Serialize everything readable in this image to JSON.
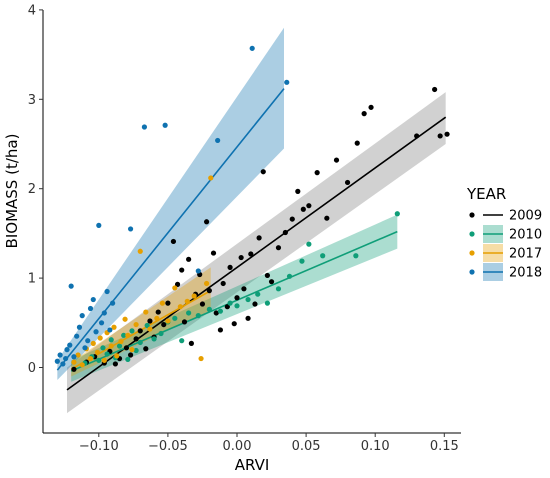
{
  "chart_data": {
    "type": "scatter",
    "xlabel": "ARVI",
    "ylabel": "BIOMASS (t/ha)",
    "xlim": [
      -0.145,
      0.16
    ],
    "ylim": [
      -0.72,
      4.0
    ],
    "x_ticks": [
      -0.1,
      -0.05,
      0.0,
      0.05,
      0.1,
      0.15
    ],
    "x_tick_labels": [
      "−0.10",
      "−0.05",
      "0.00",
      "0.05",
      "0.10",
      "0.15"
    ],
    "y_ticks": [
      0,
      1,
      2,
      3,
      4
    ],
    "y_tick_labels": [
      "0",
      "1",
      "2",
      "3",
      "4"
    ],
    "grid": false,
    "legend": {
      "title": "YEAR",
      "placement": "right"
    },
    "series": [
      {
        "name": "2009",
        "color": "#000000",
        "fit": {
          "x": [
            -0.123,
            0.151
          ],
          "y": [
            -0.25,
            2.8
          ],
          "ci_lower": [
            -0.51,
            2.5
          ],
          "ci_upper": [
            0.0,
            3.08
          ]
        },
        "points": [
          [
            -0.118,
            -0.02
          ],
          [
            -0.109,
            0.06
          ],
          [
            -0.103,
            0.12
          ],
          [
            -0.096,
            0.05
          ],
          [
            -0.092,
            0.18
          ],
          [
            -0.088,
            0.04
          ],
          [
            -0.085,
            0.1
          ],
          [
            -0.08,
            0.22
          ],
          [
            -0.077,
            0.14
          ],
          [
            -0.073,
            0.32
          ],
          [
            -0.07,
            0.41
          ],
          [
            -0.066,
            0.21
          ],
          [
            -0.063,
            0.52
          ],
          [
            -0.06,
            0.34
          ],
          [
            -0.057,
            0.62
          ],
          [
            -0.053,
            0.48
          ],
          [
            -0.05,
            0.72
          ],
          [
            -0.046,
            1.41
          ],
          [
            -0.043,
            0.93
          ],
          [
            -0.04,
            1.09
          ],
          [
            -0.038,
            0.51
          ],
          [
            -0.035,
            1.21
          ],
          [
            -0.033,
            0.27
          ],
          [
            -0.03,
            0.82
          ],
          [
            -0.027,
            1.04
          ],
          [
            -0.025,
            0.71
          ],
          [
            -0.022,
            1.63
          ],
          [
            -0.02,
            0.86
          ],
          [
            -0.017,
            1.28
          ],
          [
            -0.015,
            0.61
          ],
          [
            -0.012,
            0.42
          ],
          [
            -0.01,
            0.94
          ],
          [
            -0.007,
            0.68
          ],
          [
            -0.005,
            1.12
          ],
          [
            -0.002,
            0.49
          ],
          [
            0.0,
            0.78
          ],
          [
            0.003,
            1.23
          ],
          [
            0.005,
            0.88
          ],
          [
            0.008,
            0.55
          ],
          [
            0.01,
            1.27
          ],
          [
            0.013,
            0.71
          ],
          [
            0.016,
            1.45
          ],
          [
            0.019,
            2.19
          ],
          [
            0.022,
            1.03
          ],
          [
            0.025,
            0.96
          ],
          [
            0.03,
            1.34
          ],
          [
            0.035,
            1.51
          ],
          [
            0.04,
            1.66
          ],
          [
            0.044,
            1.97
          ],
          [
            0.048,
            1.77
          ],
          [
            0.052,
            1.81
          ],
          [
            0.058,
            2.18
          ],
          [
            0.065,
            1.67
          ],
          [
            0.072,
            2.32
          ],
          [
            0.08,
            2.07
          ],
          [
            0.087,
            2.51
          ],
          [
            0.092,
            2.84
          ],
          [
            0.097,
            2.91
          ],
          [
            0.13,
            2.59
          ],
          [
            0.143,
            3.11
          ],
          [
            0.147,
            2.59
          ],
          [
            0.152,
            2.61
          ]
        ]
      },
      {
        "name": "2010",
        "color": "#0f9e78",
        "fit": {
          "x": [
            -0.12,
            0.116
          ],
          "y": [
            -0.04,
            1.52
          ],
          "ci_lower": [
            -0.16,
            1.33
          ],
          "ci_upper": [
            0.08,
            1.71
          ]
        },
        "points": [
          [
            -0.11,
            0.05
          ],
          [
            -0.105,
            0.12
          ],
          [
            -0.1,
            0.08
          ],
          [
            -0.097,
            0.22
          ],
          [
            -0.094,
            0.15
          ],
          [
            -0.091,
            0.31
          ],
          [
            -0.088,
            0.11
          ],
          [
            -0.085,
            0.24
          ],
          [
            -0.082,
            0.36
          ],
          [
            -0.079,
            0.09
          ],
          [
            -0.076,
            0.41
          ],
          [
            -0.073,
            0.19
          ],
          [
            -0.07,
            0.28
          ],
          [
            -0.065,
            0.47
          ],
          [
            -0.06,
            0.32
          ],
          [
            -0.055,
            0.38
          ],
          [
            -0.05,
            0.51
          ],
          [
            -0.045,
            0.55
          ],
          [
            -0.04,
            0.3
          ],
          [
            -0.035,
            0.61
          ],
          [
            -0.028,
            0.58
          ],
          [
            -0.02,
            0.65
          ],
          [
            -0.012,
            0.63
          ],
          [
            -0.005,
            0.72
          ],
          [
            0.0,
            0.69
          ],
          [
            0.008,
            0.76
          ],
          [
            0.015,
            0.82
          ],
          [
            0.022,
            0.72
          ],
          [
            0.03,
            0.88
          ],
          [
            0.038,
            1.02
          ],
          [
            0.047,
            1.19
          ],
          [
            0.052,
            1.38
          ],
          [
            0.062,
            1.25
          ],
          [
            0.086,
            1.25
          ],
          [
            0.116,
            1.72
          ]
        ]
      },
      {
        "name": "2017",
        "color": "#e69f00",
        "fit": {
          "x": [
            -0.12,
            -0.019
          ],
          "y": [
            -0.02,
            0.86
          ],
          "ci_lower": [
            -0.1,
            0.64
          ],
          "ci_upper": [
            0.06,
            1.12
          ]
        },
        "points": [
          [
            -0.118,
            0.06
          ],
          [
            -0.115,
            0.14
          ],
          [
            -0.112,
            0.03
          ],
          [
            -0.109,
            0.21
          ],
          [
            -0.106,
            0.1
          ],
          [
            -0.104,
            0.27
          ],
          [
            -0.101,
            0.17
          ],
          [
            -0.099,
            0.33
          ],
          [
            -0.096,
            0.08
          ],
          [
            -0.094,
            0.39
          ],
          [
            -0.091,
            0.24
          ],
          [
            -0.089,
            0.45
          ],
          [
            -0.087,
            0.13
          ],
          [
            -0.084,
            0.29
          ],
          [
            -0.081,
            0.54
          ],
          [
            -0.079,
            0.36
          ],
          [
            -0.076,
            0.2
          ],
          [
            -0.073,
            0.48
          ],
          [
            -0.07,
            1.3
          ],
          [
            -0.066,
            0.62
          ],
          [
            -0.063,
            0.43
          ],
          [
            -0.058,
            0.55
          ],
          [
            -0.054,
            0.72
          ],
          [
            -0.05,
            0.52
          ],
          [
            -0.045,
            0.89
          ],
          [
            -0.041,
            0.68
          ],
          [
            -0.036,
            0.74
          ],
          [
            -0.031,
            0.8
          ],
          [
            -0.026,
            0.1
          ],
          [
            -0.022,
            0.94
          ],
          [
            -0.019,
            2.12
          ]
        ]
      },
      {
        "name": "2018",
        "color": "#0f72b0",
        "fit": {
          "x": [
            -0.13,
            0.034
          ],
          "y": [
            -0.03,
            3.12
          ],
          "ci_lower": [
            -0.14,
            2.45
          ],
          "ci_upper": [
            0.08,
            3.8
          ]
        },
        "points": [
          [
            -0.13,
            0.07
          ],
          [
            -0.128,
            0.14
          ],
          [
            -0.126,
            0.04
          ],
          [
            -0.124,
            0.1
          ],
          [
            -0.123,
            0.2
          ],
          [
            -0.121,
            0.25
          ],
          [
            -0.12,
            0.91
          ],
          [
            -0.118,
            0.12
          ],
          [
            -0.116,
            0.35
          ],
          [
            -0.114,
            0.45
          ],
          [
            -0.112,
            0.58
          ],
          [
            -0.11,
            0.22
          ],
          [
            -0.108,
            0.3
          ],
          [
            -0.106,
            0.66
          ],
          [
            -0.104,
            0.76
          ],
          [
            -0.102,
            0.4
          ],
          [
            -0.1,
            1.59
          ],
          [
            -0.098,
            0.5
          ],
          [
            -0.096,
            0.61
          ],
          [
            -0.094,
            0.85
          ],
          [
            -0.092,
            0.42
          ],
          [
            -0.09,
            0.72
          ],
          [
            -0.077,
            1.55
          ],
          [
            -0.067,
            2.69
          ],
          [
            -0.052,
            2.71
          ],
          [
            -0.028,
            1.08
          ],
          [
            -0.014,
            2.54
          ],
          [
            0.011,
            3.57
          ],
          [
            0.036,
            3.19
          ]
        ]
      }
    ]
  }
}
